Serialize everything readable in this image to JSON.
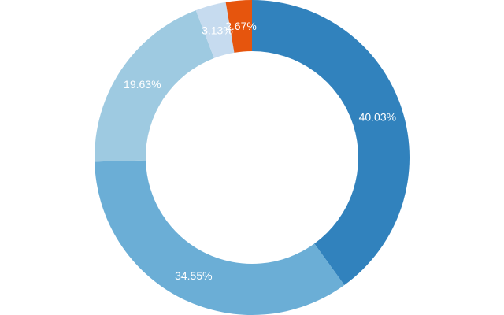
{
  "chart_data": {
    "type": "pie",
    "style": "donut",
    "start_angle_deg": 0,
    "direction": "clockwise",
    "slices": [
      {
        "value": 40.03,
        "label": "40.03%",
        "color": "#3182bd"
      },
      {
        "value": 34.55,
        "label": "34.55%",
        "color": "#6baed6"
      },
      {
        "value": 19.63,
        "label": "19.63%",
        "color": "#9ecae1"
      },
      {
        "value": 3.13,
        "label": "3.13%",
        "color": "#c6dbef"
      },
      {
        "value": 2.67,
        "label": "2.67%",
        "color": "#e6550d"
      }
    ]
  }
}
